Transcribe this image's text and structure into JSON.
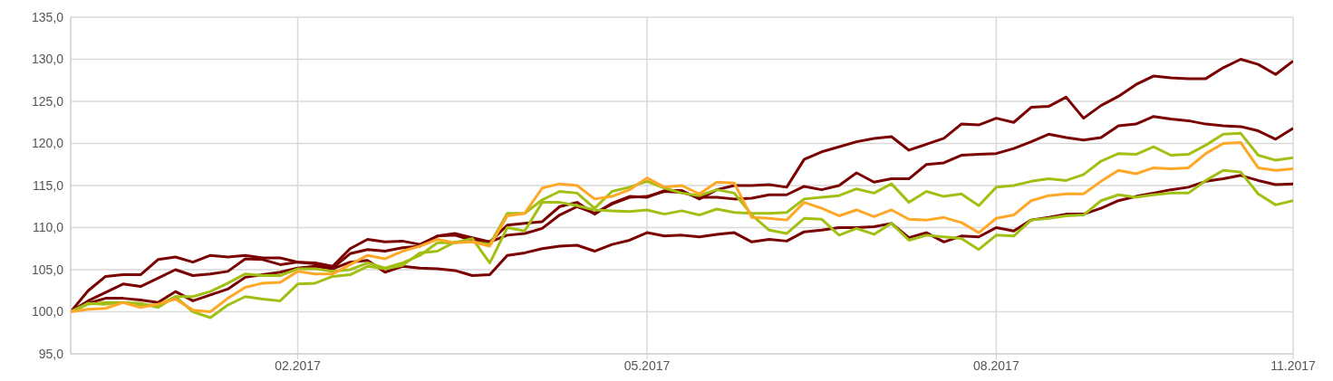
{
  "chart_data": {
    "type": "line",
    "categories": [
      null,
      null,
      null,
      null,
      null,
      null,
      null,
      null,
      null,
      null,
      null,
      null,
      null,
      "02.2017",
      null,
      null,
      null,
      null,
      null,
      null,
      null,
      null,
      null,
      null,
      null,
      null,
      null,
      null,
      null,
      null,
      null,
      null,
      null,
      "05.2017",
      null,
      null,
      null,
      null,
      null,
      null,
      null,
      null,
      null,
      null,
      null,
      null,
      null,
      null,
      null,
      null,
      null,
      null,
      null,
      "08.2017",
      null,
      null,
      null,
      null,
      null,
      null,
      null,
      null,
      null,
      null,
      null,
      null,
      null,
      null,
      null,
      null,
      "11.2017"
    ],
    "series": [
      {
        "color": "#7a0000",
        "values": [
          100,
          102.5,
          104.2,
          104.4,
          104.4,
          106.2,
          106.5,
          105.9,
          106.7,
          106.5,
          106.7,
          106.4,
          106.4,
          105.9,
          105.8,
          105.4,
          107.5,
          108.6,
          108.3,
          108.4,
          108.0,
          109,
          109.3,
          108.8,
          108.3,
          110.3,
          110.5,
          110.7,
          112.5,
          113,
          111.6,
          112.9,
          113.7,
          113.6,
          114.4,
          114.4,
          113.4,
          114.5,
          115,
          115,
          115.1,
          114.8,
          118.1,
          119,
          119.6,
          120.2,
          120.6,
          120.8,
          119.2,
          119.9,
          120.6,
          122.3,
          122.2,
          123,
          122.5,
          124.3,
          124.4,
          125.5,
          123.0,
          124.5,
          125.6,
          127,
          128,
          127.8,
          127.7,
          127.7,
          129,
          130,
          129.4,
          128.2,
          129.8
        ]
      },
      {
        "color": "#7a0000",
        "values": [
          100,
          101.3,
          102.3,
          103.3,
          103.0,
          104,
          105.0,
          104.3,
          104.5,
          104.8,
          106.3,
          106.2,
          105.6,
          105.9,
          105.7,
          105.2,
          106.9,
          107.4,
          107.2,
          107.6,
          107.8,
          109,
          109.1,
          108.5,
          108.3,
          109.1,
          109.3,
          109.9,
          111.5,
          112.5,
          111.7,
          112.8,
          113.6,
          113.7,
          114.3,
          114.2,
          113.6,
          113.6,
          113.4,
          113.5,
          113.9,
          113.9,
          114.9,
          114.5,
          115,
          116.5,
          115.4,
          115.8,
          115.8,
          117.5,
          117.7,
          118.6,
          118.7,
          118.8,
          119.4,
          120.2,
          121.1,
          120.7,
          120.4,
          120.7,
          122.1,
          122.3,
          123.2,
          122.9,
          122.7,
          122.3,
          122.1,
          122,
          121.5,
          120.5,
          121.8
        ]
      },
      {
        "color": "#7a0000",
        "values": [
          100,
          101.0,
          101.6,
          101.6,
          101.4,
          101.1,
          102.4,
          101.3,
          102,
          102.7,
          104.1,
          104.4,
          104.7,
          105.2,
          105.4,
          105.1,
          105.9,
          106.1,
          104.7,
          105.4,
          105.2,
          105.1,
          104.9,
          104.3,
          104.4,
          106.7,
          107,
          107.5,
          107.8,
          107.9,
          107.2,
          108,
          108.5,
          109.4,
          109,
          109.1,
          108.9,
          109.2,
          109.4,
          108.3,
          108.6,
          108.4,
          109.5,
          109.7,
          110.0,
          110.0,
          110.1,
          110.5,
          108.8,
          109.4,
          108.3,
          109,
          108.9,
          110,
          109.6,
          110.9,
          111.2,
          111.6,
          111.6,
          112.3,
          113.2,
          113.7,
          114.1,
          114.5,
          114.8,
          115.5,
          115.8,
          116.2,
          115.6,
          115.1,
          115.2
        ]
      },
      {
        "color": "#a2bf14",
        "values": [
          100,
          100.9,
          101.1,
          101.1,
          100.8,
          100.8,
          101.8,
          101.8,
          102.4,
          103.4,
          104.5,
          104.3,
          104.3,
          105.1,
          105.1,
          104.8,
          105.0,
          105.8,
          105.2,
          105.8,
          106.7,
          108.2,
          108.2,
          108.7,
          105.8,
          110,
          109.6,
          113.0,
          113,
          112.6,
          112.1,
          112,
          111.9,
          112.1,
          111.6,
          112,
          111.5,
          112.2,
          111.8,
          111.7,
          111.7,
          111.8,
          113.4,
          113.6,
          113.8,
          114.6,
          114.1,
          115.2,
          113,
          114.3,
          113.7,
          114,
          112.6,
          114.8,
          115,
          115.5,
          115.8,
          115.6,
          116.3,
          117.9,
          118.8,
          118.7,
          119.6,
          118.6,
          118.7,
          119.8,
          121.1,
          121.2,
          118.6,
          118,
          118.3
        ]
      },
      {
        "color": "#a2bf14",
        "values": [
          100,
          101.0,
          100.9,
          101.1,
          101.0,
          100.5,
          101.8,
          100,
          99.3,
          100.8,
          101.8,
          101.5,
          101.3,
          103.3,
          103.4,
          104.2,
          104.4,
          105.4,
          105.1,
          105.5,
          107,
          107.2,
          108.3,
          108.3,
          108.0,
          111.7,
          111.7,
          113.3,
          114.3,
          114.1,
          112.3,
          114.3,
          114.8,
          115.5,
          114.7,
          114.1,
          113.8,
          114.5,
          114.1,
          111.5,
          109.7,
          109.3,
          111.1,
          111.0,
          109.1,
          109.9,
          109.2,
          110.5,
          108.5,
          109.1,
          108.9,
          108.7,
          107.4,
          109.1,
          109.0,
          110.9,
          111.1,
          111.4,
          111.5,
          113.2,
          113.9,
          113.6,
          113.9,
          114.1,
          114.1,
          115.6,
          116.8,
          116.6,
          114,
          112.7,
          113.2
        ]
      },
      {
        "color": "#ffa726",
        "values": [
          100,
          100.3,
          100.4,
          101.1,
          100.5,
          100.9,
          101.5,
          100.2,
          100,
          101.6,
          102.9,
          103.4,
          103.5,
          104.8,
          104.5,
          104.5,
          105.6,
          106.7,
          106.3,
          107.2,
          107.8,
          108.6,
          108.2,
          108.3,
          107.8,
          111.4,
          111.7,
          114.7,
          115.2,
          115,
          113.4,
          113.7,
          114.5,
          115.9,
          114.8,
          115.0,
          114,
          115.4,
          115.3,
          111.2,
          111.1,
          110.9,
          113,
          112.3,
          111.4,
          112.1,
          111.3,
          112.1,
          111.0,
          110.9,
          111.2,
          110.6,
          109.4,
          111.1,
          111.5,
          113.2,
          113.8,
          114,
          114,
          115.5,
          116.8,
          116.4,
          117.1,
          117,
          117.1,
          118.8,
          120,
          120.1,
          117.1,
          116.8,
          117
        ]
      }
    ],
    "ylim": [
      95,
      135
    ],
    "yticks": [
      {
        "value": 95,
        "label": "95,0"
      },
      {
        "value": 100,
        "label": "100,0"
      },
      {
        "value": 105,
        "label": "105,0"
      },
      {
        "value": 110,
        "label": "110,0"
      },
      {
        "value": 115,
        "label": "115,0"
      },
      {
        "value": 120,
        "label": "120,0"
      },
      {
        "value": 125,
        "label": "125,0"
      },
      {
        "value": 130,
        "label": "130,0"
      },
      {
        "value": 135,
        "label": "135,0"
      }
    ],
    "grid": true,
    "marker": "none",
    "line_style": "solid"
  }
}
